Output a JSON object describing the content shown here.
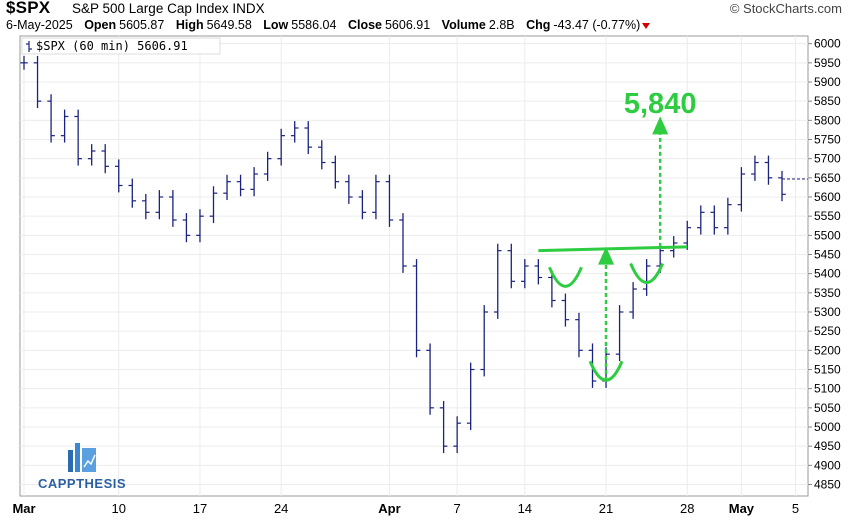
{
  "header": {
    "ticker": "$SPX",
    "name": "S&P 500 Large Cap Index",
    "exchange": "INDX",
    "watermark": "© StockCharts.com",
    "date": "6-May-2025",
    "open_label": "Open",
    "open": "5605.87",
    "high_label": "High",
    "high": "5649.58",
    "low_label": "Low",
    "low": "5586.04",
    "close_label": "Close",
    "close": "5606.91",
    "volume_label": "Volume",
    "volume": "2.8B",
    "chg_label": "Chg",
    "chg": "-43.47 (-0.77%)"
  },
  "legend": "$SPX (60 min) 5606.91",
  "logo_text": "CAPPTHESIS",
  "annotation": {
    "target_label": "5,840",
    "target_value": 5840
  },
  "colors": {
    "price": "#1a237e",
    "annotation": "#2ecc40",
    "chg_arrow": "#cc0000"
  },
  "chart_data": {
    "type": "ohlc",
    "interval": "60 min",
    "last_close": 5606.91,
    "ylim": [
      4820,
      6020
    ],
    "y_ticks": [
      4850,
      4900,
      4950,
      5000,
      5050,
      5100,
      5150,
      5200,
      5250,
      5300,
      5350,
      5400,
      5450,
      5500,
      5550,
      5600,
      5650,
      5700,
      5750,
      5800,
      5850,
      5900,
      5950,
      6000
    ],
    "x_ticks": [
      "Mar",
      "10",
      "17",
      "24",
      "Apr",
      "7",
      "14",
      "21",
      "28",
      "May",
      "5"
    ],
    "x_tick_index": [
      0,
      7,
      13,
      19,
      27,
      32,
      37,
      43,
      49,
      53,
      57
    ],
    "series": [
      {
        "values": [
          5950,
          5850,
          5760,
          5810,
          5700,
          5720,
          5680,
          5630,
          5590,
          5560,
          5600,
          5540,
          5500,
          5550,
          5610,
          5640,
          5620,
          5660,
          5700,
          5760,
          5780,
          5730,
          5690,
          5640,
          5600,
          5560,
          5640,
          5540,
          5420,
          5200,
          5050,
          4950,
          5010,
          5150,
          5300,
          5460,
          5380,
          5420,
          5390,
          5330,
          5280,
          5200,
          5120,
          5190,
          5300,
          5360,
          5420,
          5460,
          5480,
          5520,
          5560,
          5520,
          5580,
          5660,
          5690,
          5650,
          5607
        ]
      }
    ],
    "annotations": [
      {
        "type": "neckline",
        "from": [
          38,
          5460
        ],
        "to": [
          49,
          5470
        ]
      },
      {
        "type": "cup",
        "center": [
          40,
          5380
        ]
      },
      {
        "type": "cup",
        "center": [
          43,
          5135
        ]
      },
      {
        "type": "cup",
        "center": [
          46,
          5390
        ]
      },
      {
        "type": "arrow",
        "x": 43,
        "from": 5120,
        "to": 5460
      },
      {
        "type": "arrow",
        "x": 47,
        "from": 5470,
        "to": 5800
      }
    ]
  }
}
